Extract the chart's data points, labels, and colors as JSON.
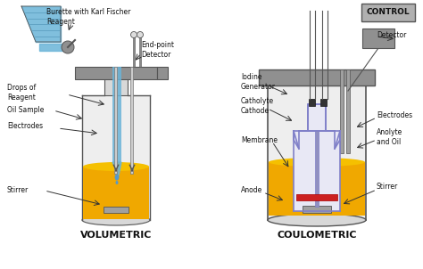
{
  "bg_color": "#f0f0f0",
  "title_vol": "VOLUMETRIC",
  "title_coul": "COULOMETRIC",
  "labels_vol": {
    "burette": "Burette with Karl Fischer\nReagent",
    "endpoint": "End-point\nDetector",
    "drops": "Drops of\nReagent",
    "oil": "Oil Sample",
    "electrodes": "Electrodes",
    "stirrer": "Stirrer"
  },
  "labels_coul": {
    "control": "CONTROL",
    "detector": "Detector",
    "iodine": "Iodine\nGenerator",
    "catholyte": "Catholyte\nCathode",
    "membrane": "Membrane",
    "anode": "Anode",
    "electrodes": "Electrodes",
    "anolyte": "Anolyte\nand Oil",
    "stirrer": "Stirrer"
  },
  "colors": {
    "blue_burette": "#6ab4d8",
    "blue_tube": "#7ec8e3",
    "gold": "#f0a800",
    "gold_dark": "#c88800",
    "gray_collar": "#909090",
    "gray_light": "#b8b8b8",
    "gray_vessel": "#d8d8d8",
    "gray_dark": "#555555",
    "white": "#ffffff",
    "purple": "#8080c8",
    "purple_light": "#c8c8e8",
    "red": "#cc2020",
    "silver": "#a0a0a0",
    "dark": "#222222",
    "control_box": "#b0b0b0",
    "drop_blue": "#5599cc",
    "vessel_bg": "#eeeeee",
    "inner_vessel_bg": "#e8e8f5"
  }
}
